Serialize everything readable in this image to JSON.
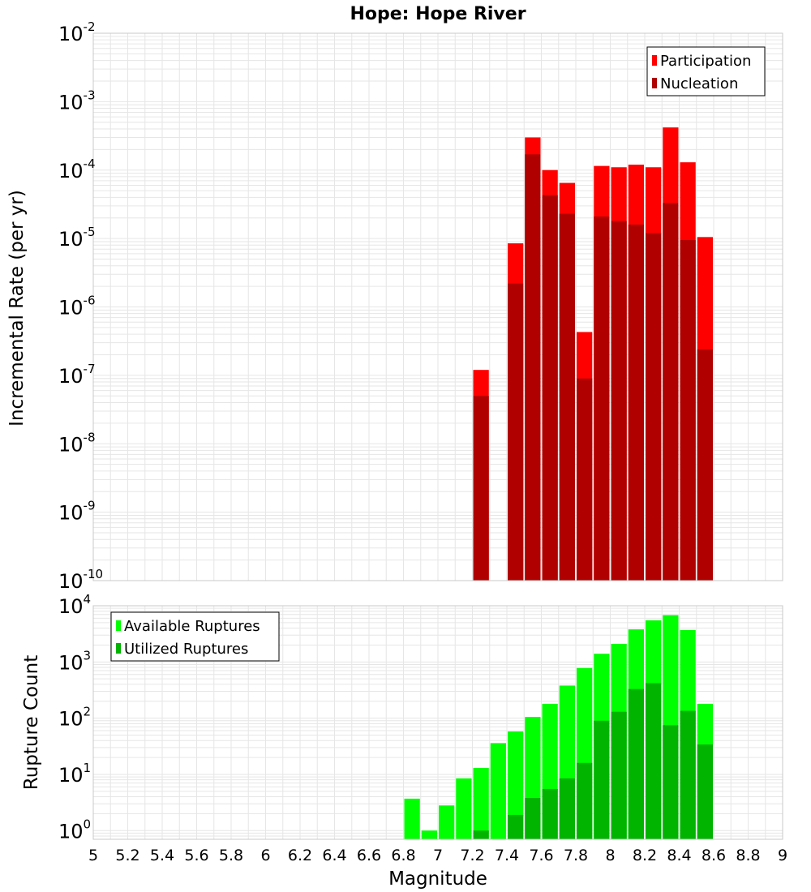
{
  "chart_data": [
    {
      "type": "bar",
      "title": "Hope: Hope River",
      "xlabel": "",
      "ylabel": "Incremental Rate (per yr)",
      "yscale": "log",
      "xlim": [
        5,
        9
      ],
      "ylim": [
        1e-10,
        0.01
      ],
      "grid": true,
      "legend_position": "top-right",
      "ytick_exponents": [
        "-10",
        "-9",
        "-8",
        "-7",
        "-6",
        "-5",
        "-4",
        "-3",
        "-2"
      ],
      "x": [
        7.25,
        7.45,
        7.55,
        7.65,
        7.75,
        7.85,
        7.95,
        8.05,
        8.15,
        8.25,
        8.35,
        8.45,
        8.55
      ],
      "series": [
        {
          "name": "Participation",
          "color": "#ff0000",
          "values": [
            1.2e-07,
            8.5e-06,
            0.0003,
            0.0001,
            6.5e-05,
            4.3e-07,
            0.000115,
            0.00011,
            0.00012,
            0.00011,
            0.00042,
            0.00013,
            1.05e-05
          ]
        },
        {
          "name": "Nucleation",
          "color": "#b00000",
          "values": [
            5e-08,
            2.2e-06,
            0.00017,
            4.3e-05,
            2.3e-05,
            9e-08,
            2.1e-05,
            1.8e-05,
            1.6e-05,
            1.2e-05,
            3.3e-05,
            9.5e-06,
            2.4e-07
          ]
        }
      ]
    },
    {
      "type": "bar",
      "title": "",
      "xlabel": "Magnitude",
      "ylabel": "Rupture Count",
      "yscale": "log",
      "xlim": [
        5,
        9
      ],
      "ylim": [
        0.7,
        10000.0
      ],
      "grid": true,
      "legend_position": "top-left",
      "xticks": [
        "5",
        "5.2",
        "5.4",
        "5.6",
        "5.8",
        "6",
        "6.2",
        "6.4",
        "6.6",
        "6.8",
        "7",
        "7.2",
        "7.4",
        "7.6",
        "7.8",
        "8",
        "8.2",
        "8.4",
        "8.6",
        "8.8",
        "9"
      ],
      "ytick_exponents": [
        "0",
        "1",
        "2",
        "3",
        "4"
      ],
      "x": [
        6.85,
        6.95,
        7.05,
        7.15,
        7.25,
        7.35,
        7.45,
        7.55,
        7.65,
        7.75,
        7.85,
        7.95,
        8.05,
        8.15,
        8.25,
        8.35,
        8.45,
        8.55
      ],
      "series": [
        {
          "name": "Available Ruptures",
          "color": "#00ff00",
          "values": [
            3.7,
            1.0,
            2.8,
            8.5,
            13,
            36,
            58,
            105,
            180,
            380,
            780,
            1400,
            2100,
            3800,
            5500,
            6800,
            3700,
            180
          ]
        },
        {
          "name": "Utilized Ruptures",
          "color": "#00b400",
          "values": [
            0,
            0,
            0,
            0,
            1.0,
            0,
            1.9,
            3.8,
            5.5,
            8.5,
            16,
            90,
            130,
            330,
            420,
            75,
            135,
            34
          ]
        }
      ]
    }
  ]
}
